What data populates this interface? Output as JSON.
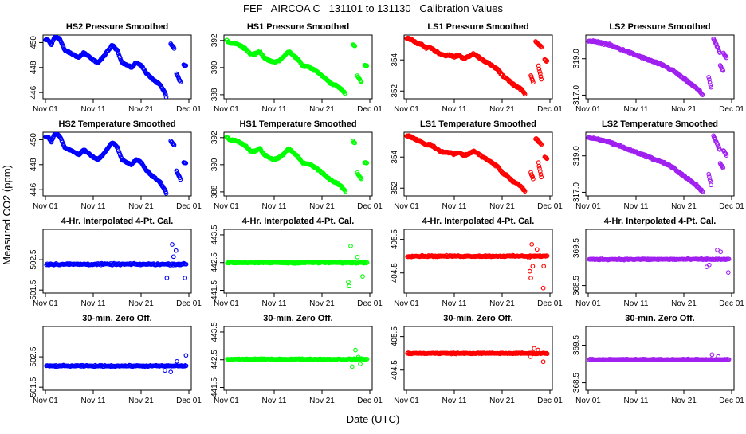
{
  "chart_data": {
    "type": "scatter",
    "title": "FEF   AIRCOA C   131101 to 131130   Calibration Values",
    "xlabel": "Date (UTC)",
    "ylabel": "Measured CO2 (ppm)",
    "x_range_days": [
      0,
      30
    ],
    "x_ticks": [
      {
        "day": 0,
        "label": "Nov 01"
      },
      {
        "day": 10,
        "label": "Nov 11"
      },
      {
        "day": 20,
        "label": "Nov 21"
      },
      {
        "day": 30,
        "label": "Dec 01"
      }
    ],
    "row_titles": [
      "Pressure Smoothed",
      "Temperature Smoothed",
      "4-Hr. Interpolated 4-Pt. Cal.",
      "30-min. Zero Off."
    ],
    "panels": [
      {
        "row": 0,
        "col": 0,
        "title": "HS2 Pressure Smoothed",
        "color": "#0000ff",
        "ylim": [
          445.5,
          450.6
        ],
        "yticks": [
          "446",
          "448",
          "450"
        ],
        "tick_values": [
          446,
          448,
          450
        ],
        "profile": "hs2"
      },
      {
        "row": 0,
        "col": 1,
        "title": "HS1 Pressure Smoothed",
        "color": "#00ff00",
        "ylim": [
          387.7,
          392.4
        ],
        "yticks": [
          "388",
          "390",
          "392"
        ],
        "tick_values": [
          388,
          390,
          392
        ],
        "profile": "hs1"
      },
      {
        "row": 0,
        "col": 2,
        "title": "LS1 Pressure Smoothed",
        "color": "#ff0000",
        "ylim": [
          351.5,
          355.6
        ],
        "yticks": [
          "352",
          "354"
        ],
        "tick_values": [
          352,
          354
        ],
        "profile": "ls1"
      },
      {
        "row": 0,
        "col": 3,
        "title": "LS2 Pressure Smoothed",
        "color": "#a020f0",
        "ylim": [
          316.8,
          320.3
        ],
        "yticks": [
          "317.0",
          "319.0"
        ],
        "tick_values": [
          317,
          319
        ],
        "profile": "ls2"
      },
      {
        "row": 1,
        "col": 0,
        "title": "HS2 Temperature Smoothed",
        "color": "#0000ff",
        "ylim": [
          445.5,
          450.6
        ],
        "yticks": [
          "446",
          "448",
          "450"
        ],
        "tick_values": [
          446,
          448,
          450
        ],
        "profile": "hs2"
      },
      {
        "row": 1,
        "col": 1,
        "title": "HS1 Temperature Smoothed",
        "color": "#00ff00",
        "ylim": [
          387.7,
          392.4
        ],
        "yticks": [
          "388",
          "390",
          "392"
        ],
        "tick_values": [
          388,
          390,
          392
        ],
        "profile": "hs1"
      },
      {
        "row": 1,
        "col": 2,
        "title": "LS1 Temperature Smoothed",
        "color": "#ff0000",
        "ylim": [
          351.5,
          355.6
        ],
        "yticks": [
          "352",
          "354"
        ],
        "tick_values": [
          352,
          354
        ],
        "profile": "ls1"
      },
      {
        "row": 1,
        "col": 3,
        "title": "LS2 Temperature Smoothed",
        "color": "#a020f0",
        "ylim": [
          316.8,
          320.3
        ],
        "yticks": [
          "317.0",
          "319.0"
        ],
        "tick_values": [
          317,
          319
        ],
        "profile": "ls2"
      },
      {
        "row": 2,
        "col": 0,
        "title": "4-Hr. Interpolated 4-Pt. Cal.",
        "color": "#0000ff",
        "ylim": [
          501.4,
          503.5
        ],
        "yticks": [
          "501.5",
          "502.5"
        ],
        "tick_values": [
          501.5,
          502.5
        ],
        "profile": "flat",
        "center": 502.35,
        "noise": 0.04,
        "outliers": [
          [
            26.5,
            503.0
          ],
          [
            27.3,
            502.8
          ],
          [
            25.4,
            501.9
          ],
          [
            29.2,
            501.9
          ],
          [
            26.8,
            502.6
          ]
        ]
      },
      {
        "row": 2,
        "col": 1,
        "title": "4-Hr. Interpolated 4-Pt. Cal.",
        "color": "#00ff00",
        "ylim": [
          441.4,
          443.7
        ],
        "yticks": [
          "441.5",
          "442.5",
          "443.5"
        ],
        "tick_values": [
          441.5,
          442.5,
          443.5
        ],
        "profile": "flat",
        "center": 442.5,
        "noise": 0.04,
        "outliers": [
          [
            26.0,
            443.1
          ],
          [
            25.5,
            441.8
          ],
          [
            25.7,
            441.65
          ],
          [
            28.5,
            442.0
          ],
          [
            27.4,
            442.7
          ]
        ]
      },
      {
        "row": 2,
        "col": 2,
        "title": "4-Hr. Interpolated 4-Pt. Cal.",
        "color": "#ff0000",
        "ylim": [
          403.9,
          405.8
        ],
        "yticks": [
          "404.5",
          "405.5"
        ],
        "tick_values": [
          404.5,
          405.5
        ],
        "profile": "flat",
        "center": 405.0,
        "noise": 0.03,
        "outliers": [
          [
            26.2,
            405.35
          ],
          [
            26.4,
            404.7
          ],
          [
            25.8,
            404.55
          ],
          [
            26.0,
            404.35
          ],
          [
            28.6,
            404.05
          ],
          [
            27.3,
            405.2
          ],
          [
            28.7,
            404.7
          ],
          [
            25.6,
            404.95
          ]
        ]
      },
      {
        "row": 2,
        "col": 3,
        "title": "4-Hr. Interpolated 4-Pt. Cal.",
        "color": "#a020f0",
        "ylim": [
          368.3,
          370.0
        ],
        "yticks": [
          "368.5",
          "369.5"
        ],
        "tick_values": [
          368.5,
          369.5
        ],
        "profile": "flat",
        "center": 369.2,
        "noise": 0.025,
        "outliers": [
          [
            27.0,
            369.45
          ],
          [
            27.7,
            369.4
          ],
          [
            24.8,
            369.0
          ],
          [
            29.3,
            368.85
          ],
          [
            25.3,
            369.05
          ]
        ]
      },
      {
        "row": 3,
        "col": 0,
        "title": "30-min. Zero Off.",
        "color": "#0000ff",
        "ylim": [
          501.4,
          503.5
        ],
        "yticks": [
          "501.5",
          "502.5"
        ],
        "tick_values": [
          501.5,
          502.5
        ],
        "profile": "flat",
        "center": 502.2,
        "noise": 0.03,
        "outliers": [
          [
            25.0,
            502.05
          ],
          [
            26.2,
            502.0
          ],
          [
            29.4,
            502.55
          ],
          [
            27.5,
            502.35
          ]
        ]
      },
      {
        "row": 3,
        "col": 1,
        "title": "30-min. Zero Off.",
        "color": "#00ff00",
        "ylim": [
          441.4,
          443.7
        ],
        "yticks": [
          "441.5",
          "442.5",
          "443.5"
        ],
        "tick_values": [
          441.5,
          442.5,
          443.5
        ],
        "profile": "flat",
        "center": 442.52,
        "noise": 0.03,
        "outliers": [
          [
            26.3,
            442.25
          ],
          [
            27.0,
            442.85
          ],
          [
            28.0,
            442.35
          ],
          [
            27.6,
            442.6
          ]
        ]
      },
      {
        "row": 3,
        "col": 2,
        "title": "30-min. Zero Off.",
        "color": "#ff0000",
        "ylim": [
          403.9,
          405.8
        ],
        "yticks": [
          "404.5",
          "405.5"
        ],
        "tick_values": [
          404.5,
          405.5
        ],
        "profile": "flat",
        "center": 405.0,
        "noise": 0.025,
        "outliers": [
          [
            26.7,
            405.15
          ],
          [
            27.5,
            405.1
          ],
          [
            28.6,
            404.75
          ],
          [
            25.9,
            404.9
          ]
        ]
      },
      {
        "row": 3,
        "col": 3,
        "title": "30-min. Zero Off.",
        "color": "#a020f0",
        "ylim": [
          368.3,
          370.0
        ],
        "yticks": [
          "368.5",
          "369.5"
        ],
        "tick_values": [
          368.5,
          369.5
        ],
        "profile": "flat",
        "center": 369.12,
        "noise": 0.02,
        "outliers": [
          [
            25.9,
            369.25
          ],
          [
            27.2,
            369.2
          ]
        ]
      }
    ],
    "profiles": {
      "hs2": {
        "knots": [
          [
            0,
            450.2
          ],
          [
            0.6,
            450.2
          ],
          [
            1.2,
            449.8
          ],
          [
            2.0,
            450.5
          ],
          [
            3.0,
            450.3
          ],
          [
            4.0,
            449.4
          ],
          [
            5.0,
            449.2
          ],
          [
            6.0,
            449.0
          ],
          [
            7.0,
            448.8
          ],
          [
            8.0,
            449.2
          ],
          [
            9.0,
            448.9
          ],
          [
            10.0,
            448.6
          ],
          [
            11.0,
            448.4
          ],
          [
            12.0,
            448.8
          ],
          [
            13.0,
            449.3
          ],
          [
            14.0,
            449.8
          ],
          [
            15.0,
            449.4
          ],
          [
            16.0,
            448.4
          ],
          [
            17.0,
            448.2
          ],
          [
            18.0,
            448.0
          ],
          [
            19.0,
            448.4
          ],
          [
            20.0,
            448.2
          ],
          [
            21.0,
            447.6
          ],
          [
            22.0,
            447.2
          ],
          [
            23.0,
            446.9
          ],
          [
            24.0,
            446.6
          ],
          [
            24.6,
            446.2
          ],
          [
            25.0,
            446.0
          ],
          [
            25.3,
            445.6
          ]
        ],
        "gaps": [
          [
            25.4,
            26.2
          ],
          [
            26.9,
            27.4
          ],
          [
            28.3,
            28.9
          ]
        ],
        "extra": [
          [
            26.2,
            27.0,
            449.9,
            449.5
          ],
          [
            27.4,
            28.3,
            447.5,
            446.8
          ],
          [
            28.9,
            29.5,
            448.2,
            448.1
          ]
        ]
      },
      "hs1": {
        "knots": [
          [
            0,
            392.0
          ],
          [
            1.0,
            391.8
          ],
          [
            2.0,
            391.8
          ],
          [
            3.0,
            391.6
          ],
          [
            4.0,
            391.4
          ],
          [
            5.0,
            391.0
          ],
          [
            6.0,
            391.0
          ],
          [
            7.0,
            391.2
          ],
          [
            8.0,
            390.7
          ],
          [
            9.0,
            390.5
          ],
          [
            10.0,
            390.4
          ],
          [
            11.0,
            390.5
          ],
          [
            12.0,
            390.8
          ],
          [
            13.0,
            391.2
          ],
          [
            14.0,
            390.9
          ],
          [
            15.0,
            390.6
          ],
          [
            16.0,
            390.1
          ],
          [
            17.0,
            390.1
          ],
          [
            18.0,
            389.9
          ],
          [
            19.0,
            389.7
          ],
          [
            20.0,
            389.4
          ],
          [
            21.0,
            389.1
          ],
          [
            22.0,
            388.8
          ],
          [
            23.0,
            388.7
          ],
          [
            24.0,
            388.4
          ],
          [
            25.0,
            388.0
          ]
        ],
        "gaps": [
          [
            25.2,
            26.5
          ],
          [
            26.9,
            27.4
          ],
          [
            28.3,
            28.9
          ]
        ],
        "extra": [
          [
            26.5,
            26.9,
            391.7,
            391.6
          ],
          [
            27.4,
            28.3,
            389.4,
            388.9
          ],
          [
            28.9,
            29.5,
            390.2,
            390.1
          ]
        ]
      },
      "ls1": {
        "knots": [
          [
            0,
            355.4
          ],
          [
            1.0,
            355.3
          ],
          [
            2.0,
            355.1
          ],
          [
            3.0,
            355.0
          ],
          [
            4.0,
            354.8
          ],
          [
            5.0,
            354.8
          ],
          [
            6.0,
            354.6
          ],
          [
            7.0,
            354.4
          ],
          [
            8.0,
            354.3
          ],
          [
            9.0,
            354.3
          ],
          [
            10.0,
            354.2
          ],
          [
            11.0,
            354.3
          ],
          [
            12.0,
            354.1
          ],
          [
            13.0,
            354.2
          ],
          [
            14.0,
            354.4
          ],
          [
            15.0,
            354.2
          ],
          [
            16.0,
            354.0
          ],
          [
            17.0,
            353.8
          ],
          [
            18.0,
            353.6
          ],
          [
            19.0,
            353.4
          ],
          [
            20.0,
            353.0
          ],
          [
            21.0,
            352.8
          ],
          [
            22.0,
            352.5
          ],
          [
            23.0,
            352.3
          ],
          [
            24.0,
            352.1
          ],
          [
            24.8,
            351.8
          ]
        ],
        "gaps": [
          [
            25.0,
            26.0
          ],
          [
            26.6,
            27.0
          ],
          [
            28.3,
            28.9
          ]
        ],
        "extra": [
          [
            26.0,
            26.6,
            353.0,
            352.5
          ],
          [
            27.0,
            28.3,
            355.2,
            354.8
          ],
          [
            27.6,
            28.3,
            353.6,
            352.6
          ],
          [
            28.9,
            29.5,
            354.0,
            353.9
          ]
        ]
      },
      "ls2": {
        "knots": [
          [
            0,
            320.0
          ],
          [
            2.0,
            319.9
          ],
          [
            4.0,
            319.8
          ],
          [
            6.0,
            319.6
          ],
          [
            8.0,
            319.4
          ],
          [
            10.0,
            319.2
          ],
          [
            12.0,
            319.0
          ],
          [
            14.0,
            318.8
          ],
          [
            16.0,
            318.6
          ],
          [
            18.0,
            318.3
          ],
          [
            19.0,
            318.1
          ],
          [
            20.0,
            317.9
          ],
          [
            21.0,
            317.7
          ],
          [
            22.0,
            317.5
          ],
          [
            23.0,
            317.3
          ],
          [
            24.0,
            317.0
          ]
        ],
        "gaps": [
          [
            24.2,
            25.2
          ],
          [
            25.7,
            26.2
          ],
          [
            27.6,
            28.3
          ]
        ],
        "extra": [
          [
            25.2,
            25.7,
            318.0,
            317.4
          ],
          [
            26.2,
            27.6,
            320.1,
            319.3
          ],
          [
            27.6,
            28.3,
            318.6,
            318.3
          ],
          [
            28.3,
            29.0,
            319.3,
            319.0
          ]
        ]
      }
    }
  }
}
